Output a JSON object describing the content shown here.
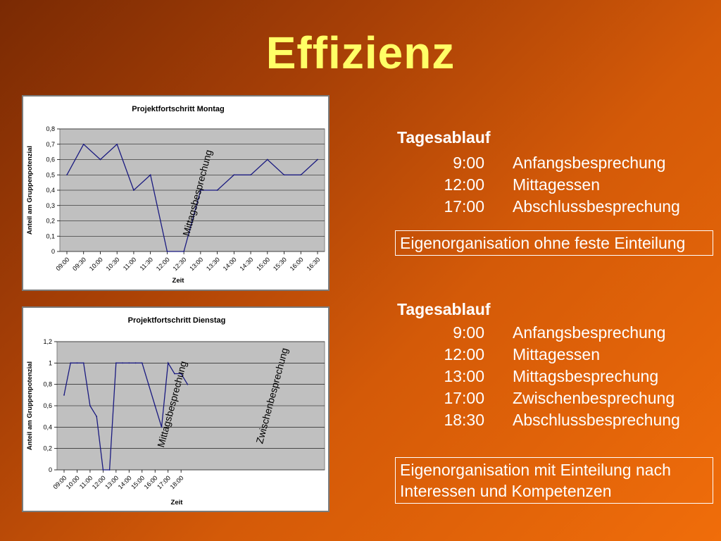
{
  "slide": {
    "title": "Effizienz"
  },
  "schedule_top": {
    "heading": "Tagesablauf",
    "rows": [
      {
        "time": "9:00",
        "event": "Anfangsbesprechung"
      },
      {
        "time": "12:00",
        "event": "Mittagessen"
      },
      {
        "time": "17:00",
        "event": "Abschlussbesprechung"
      }
    ],
    "note": "Eigenorganisation ohne feste Einteilung"
  },
  "schedule_bottom": {
    "heading": "Tagesablauf",
    "rows": [
      {
        "time": "9:00",
        "event": "Anfangsbesprechung"
      },
      {
        "time": "12:00",
        "event": "Mittagessen"
      },
      {
        "time": "13:00",
        "event": "Mittagsbesprechung"
      },
      {
        "time": "17:00",
        "event": "Zwischenbesprechung"
      },
      {
        "time": "18:30",
        "event": "Abschlussbesprechung"
      }
    ],
    "note_line1": "Eigenorganisation mit Einteilung nach",
    "note_line2": "Interessen und Kompetenzen"
  },
  "colors": {
    "title": "#ffff66",
    "plot_area": "#c0c0c0",
    "series_line": "#1a1a80"
  },
  "chart_data": [
    {
      "type": "line",
      "title": "Projektfortschritt Montag",
      "xlabel": "Zeit",
      "ylabel": "Anteil am Gruppenpotenzial",
      "ylim": [
        0,
        0.8
      ],
      "y_ticks": [
        "0",
        "0,1",
        "0,2",
        "0,3",
        "0,4",
        "0,5",
        "0,6",
        "0,7",
        "0,8"
      ],
      "categories": [
        "09:00",
        "09:30",
        "10:00",
        "10:30",
        "11:00",
        "11:30",
        "12:00",
        "12:30",
        "13:00",
        "13:30",
        "14:00",
        "14:30",
        "15:00",
        "15:30",
        "16:00",
        "16:30"
      ],
      "values": [
        0.5,
        0.7,
        0.6,
        0.7,
        0.4,
        0.5,
        0,
        0,
        0.4,
        0.4,
        0.5,
        0.5,
        0.6,
        0.5,
        0.5,
        0.6
      ],
      "grid": true,
      "annotations": [
        "Mittagsbesprechung"
      ]
    },
    {
      "type": "line",
      "title": "Projektfortschritt Dienstag",
      "xlabel": "Zeit",
      "ylabel": "Anteil am Gruppenpotenzial",
      "ylim": [
        0,
        1.2
      ],
      "y_ticks": [
        "0",
        "0,2",
        "0,4",
        "0,6",
        "0,8",
        "1",
        "1,2"
      ],
      "categories": [
        "09:00",
        "10:00",
        "11:00",
        "12:00",
        "13:00",
        "14:00",
        "15:00",
        "16:00",
        "17:00",
        "18:00"
      ],
      "x": [
        0,
        0.5,
        1,
        1.5,
        2,
        2.5,
        3,
        3.5,
        4,
        4.5,
        5,
        5.5,
        6,
        6.5,
        7,
        7.5,
        8,
        8.5,
        9,
        9.5
      ],
      "values": [
        0.7,
        1.0,
        1.0,
        1.0,
        0.6,
        0.5,
        0,
        0,
        1.0,
        1.0,
        1.0,
        1.0,
        1.0,
        0.8,
        0.6,
        0.4,
        1.0,
        0.9,
        0.9,
        0.8
      ],
      "grid": true,
      "annotations": [
        "Mittagsbesprechung",
        "Zwischenbesprechung"
      ]
    }
  ]
}
